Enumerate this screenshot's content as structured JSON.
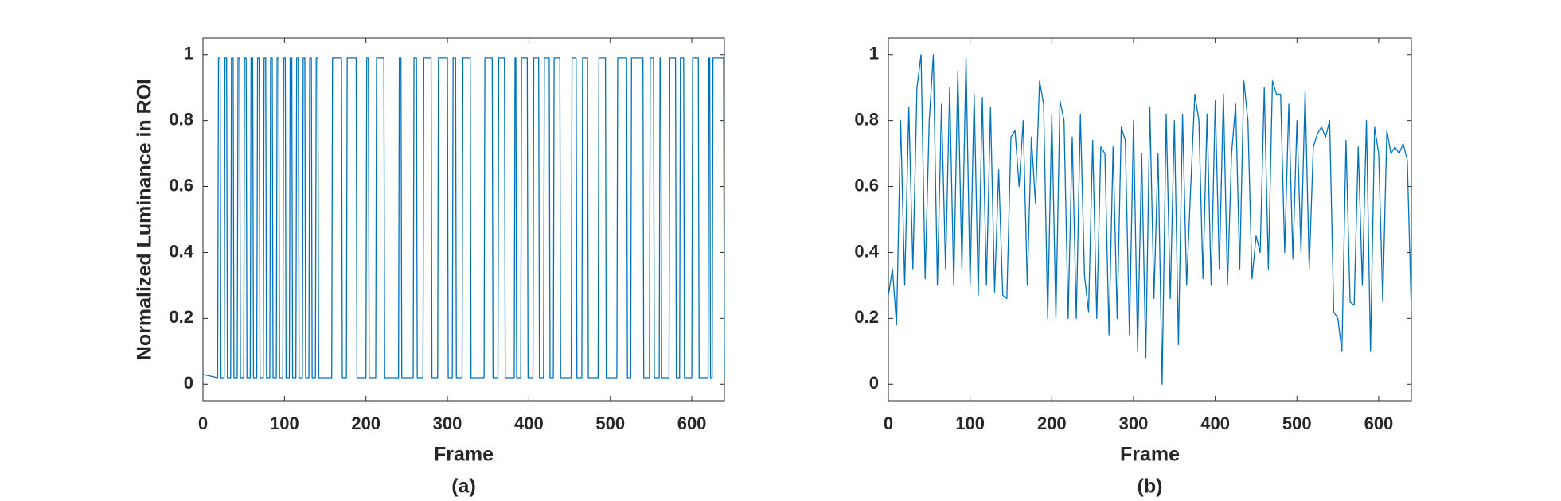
{
  "chart_data": [
    {
      "type": "line",
      "caption": "(a)",
      "xlabel": "Frame",
      "ylabel": "Normalized Luminance in ROI",
      "color": "#0072bd",
      "xlim": [
        0,
        640
      ],
      "xticks": [
        0,
        100,
        200,
        300,
        400,
        500,
        600
      ],
      "ylim": [
        -0.05,
        1.05
      ],
      "yticks": [
        0,
        0.2,
        0.4,
        0.6,
        0.8,
        1
      ],
      "x": [
        0,
        18,
        19,
        21,
        22,
        26,
        27,
        29,
        30,
        34,
        35,
        37,
        38,
        42,
        43,
        45,
        46,
        50,
        51,
        53,
        54,
        58,
        59,
        61,
        62,
        66,
        67,
        69,
        70,
        74,
        75,
        77,
        78,
        82,
        83,
        85,
        86,
        90,
        91,
        93,
        94,
        98,
        99,
        101,
        102,
        106,
        107,
        109,
        110,
        114,
        115,
        117,
        118,
        122,
        123,
        125,
        126,
        130,
        131,
        133,
        134,
        138,
        139,
        141,
        142,
        158,
        159,
        170,
        171,
        176,
        177,
        188,
        189,
        200,
        201,
        203,
        204,
        212,
        213,
        222,
        223,
        240,
        241,
        243,
        244,
        258,
        259,
        262,
        263,
        270,
        271,
        280,
        281,
        288,
        289,
        300,
        301,
        306,
        307,
        310,
        311,
        318,
        319,
        328,
        329,
        345,
        346,
        355,
        356,
        362,
        363,
        370,
        371,
        382,
        383,
        384,
        385,
        390,
        391,
        398,
        399,
        405,
        406,
        412,
        413,
        418,
        419,
        425,
        426,
        430,
        431,
        438,
        439,
        452,
        453,
        458,
        459,
        465,
        466,
        472,
        473,
        485,
        486,
        494,
        495,
        508,
        509,
        520,
        521,
        525,
        526,
        540,
        541,
        548,
        549,
        553,
        554,
        560,
        561,
        562,
        563,
        572,
        573,
        580,
        581,
        585,
        586,
        590,
        591,
        600,
        601,
        608,
        609,
        620,
        621,
        622,
        623,
        625,
        626,
        639,
        640
      ],
      "values": [
        0.03,
        0.02,
        0.99,
        0.99,
        0.02,
        0.02,
        0.99,
        0.99,
        0.02,
        0.02,
        0.99,
        0.99,
        0.02,
        0.02,
        0.99,
        0.99,
        0.02,
        0.02,
        0.99,
        0.99,
        0.02,
        0.02,
        0.99,
        0.99,
        0.02,
        0.02,
        0.99,
        0.99,
        0.02,
        0.02,
        0.99,
        0.99,
        0.02,
        0.02,
        0.99,
        0.99,
        0.02,
        0.02,
        0.99,
        0.99,
        0.02,
        0.02,
        0.99,
        0.99,
        0.02,
        0.02,
        0.99,
        0.99,
        0.02,
        0.02,
        0.99,
        0.99,
        0.02,
        0.02,
        0.99,
        0.99,
        0.02,
        0.02,
        0.99,
        0.99,
        0.02,
        0.02,
        0.99,
        0.99,
        0.02,
        0.02,
        0.99,
        0.99,
        0.02,
        0.02,
        0.99,
        0.99,
        0.02,
        0.02,
        0.99,
        0.99,
        0.02,
        0.02,
        0.99,
        0.99,
        0.02,
        0.02,
        0.99,
        0.99,
        0.02,
        0.02,
        0.99,
        0.99,
        0.02,
        0.02,
        0.99,
        0.99,
        0.02,
        0.02,
        0.99,
        0.99,
        0.02,
        0.02,
        0.99,
        0.99,
        0.02,
        0.02,
        0.99,
        0.99,
        0.02,
        0.02,
        0.99,
        0.99,
        0.02,
        0.02,
        0.99,
        0.99,
        0.02,
        0.02,
        0.99,
        0.99,
        0.02,
        0.02,
        0.99,
        0.99,
        0.02,
        0.02,
        0.99,
        0.99,
        0.02,
        0.02,
        0.99,
        0.99,
        0.02,
        0.02,
        0.99,
        0.99,
        0.02,
        0.02,
        0.99,
        0.99,
        0.02,
        0.02,
        0.99,
        0.99,
        0.02,
        0.02,
        0.99,
        0.99,
        0.02,
        0.02,
        0.99,
        0.99,
        0.02,
        0.02,
        0.99,
        0.99,
        0.02,
        0.02,
        0.99,
        0.99,
        0.02,
        0.02,
        0.99,
        0.99,
        0.02,
        0.02,
        0.99,
        0.99,
        0.02,
        0.02,
        0.99,
        0.99,
        0.02,
        0.02,
        0.99,
        0.99,
        0.02,
        0.02,
        0.99,
        0.99,
        0.02,
        0.02,
        0.99,
        0.99,
        0.02
      ]
    },
    {
      "type": "line",
      "caption": "(b)",
      "xlabel": "Frame",
      "color": "#0072bd",
      "xlim": [
        0,
        640
      ],
      "xticks": [
        0,
        100,
        200,
        300,
        400,
        500,
        600
      ],
      "ylim": [
        -0.05,
        1.05
      ],
      "yticks": [
        0,
        0.2,
        0.4,
        0.6,
        0.8,
        1
      ],
      "x": [
        0,
        5,
        10,
        15,
        20,
        25,
        30,
        35,
        40,
        45,
        50,
        55,
        60,
        65,
        70,
        75,
        80,
        85,
        90,
        95,
        100,
        105,
        110,
        115,
        120,
        125,
        130,
        135,
        140,
        145,
        150,
        155,
        160,
        165,
        170,
        175,
        180,
        185,
        190,
        195,
        200,
        205,
        210,
        215,
        220,
        225,
        230,
        235,
        240,
        245,
        250,
        255,
        260,
        265,
        270,
        275,
        280,
        285,
        290,
        295,
        300,
        305,
        310,
        315,
        320,
        325,
        330,
        335,
        340,
        345,
        350,
        355,
        360,
        365,
        370,
        375,
        380,
        385,
        390,
        395,
        400,
        405,
        410,
        415,
        420,
        425,
        430,
        435,
        440,
        445,
        450,
        455,
        460,
        465,
        470,
        475,
        480,
        485,
        490,
        495,
        500,
        505,
        510,
        515,
        520,
        525,
        530,
        535,
        540,
        545,
        550,
        555,
        560,
        565,
        570,
        575,
        580,
        585,
        590,
        595,
        600,
        605,
        610,
        615,
        620,
        625,
        630,
        635,
        640
      ],
      "values": [
        0.27,
        0.35,
        0.18,
        0.8,
        0.3,
        0.84,
        0.35,
        0.9,
        1.0,
        0.32,
        0.8,
        1.0,
        0.3,
        0.85,
        0.35,
        0.9,
        0.3,
        0.95,
        0.35,
        0.99,
        0.3,
        0.88,
        0.27,
        0.87,
        0.3,
        0.84,
        0.28,
        0.65,
        0.27,
        0.26,
        0.75,
        0.77,
        0.6,
        0.8,
        0.3,
        0.75,
        0.55,
        0.92,
        0.85,
        0.2,
        0.82,
        0.2,
        0.86,
        0.8,
        0.2,
        0.75,
        0.2,
        0.82,
        0.33,
        0.22,
        0.74,
        0.2,
        0.72,
        0.7,
        0.15,
        0.72,
        0.2,
        0.78,
        0.74,
        0.15,
        0.8,
        0.1,
        0.7,
        0.08,
        0.84,
        0.26,
        0.7,
        0.0,
        0.82,
        0.26,
        0.8,
        0.12,
        0.82,
        0.3,
        0.6,
        0.88,
        0.8,
        0.32,
        0.82,
        0.3,
        0.86,
        0.35,
        0.88,
        0.3,
        0.7,
        0.85,
        0.35,
        0.92,
        0.8,
        0.32,
        0.45,
        0.4,
        0.9,
        0.35,
        0.92,
        0.88,
        0.88,
        0.4,
        0.85,
        0.38,
        0.8,
        0.4,
        0.89,
        0.35,
        0.72,
        0.76,
        0.78,
        0.75,
        0.8,
        0.22,
        0.2,
        0.1,
        0.74,
        0.25,
        0.24,
        0.72,
        0.3,
        0.8,
        0.1,
        0.78,
        0.7,
        0.25,
        0.77,
        0.7,
        0.72,
        0.7,
        0.73,
        0.68,
        0.22
      ]
    }
  ]
}
